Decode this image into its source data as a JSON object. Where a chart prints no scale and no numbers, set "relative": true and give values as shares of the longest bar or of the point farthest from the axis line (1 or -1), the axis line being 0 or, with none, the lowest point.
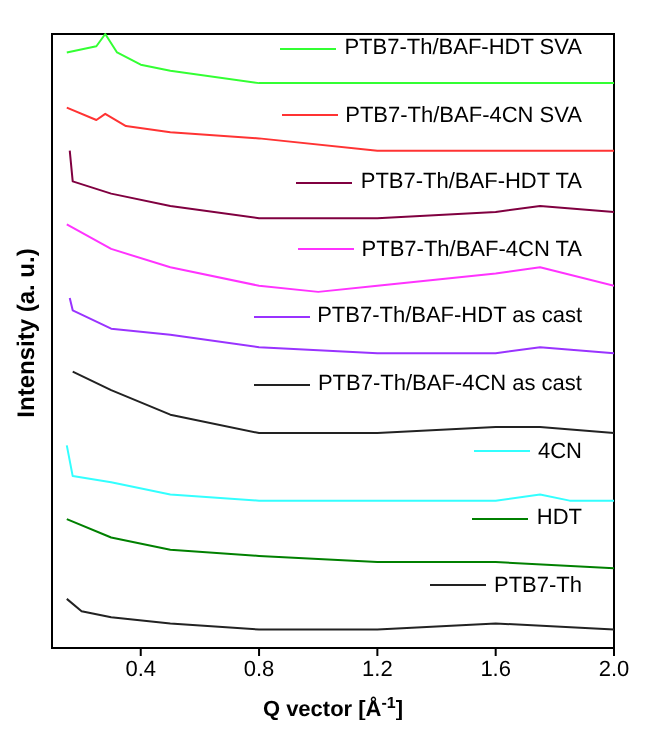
{
  "chart_data": {
    "type": "line",
    "relative": true,
    "xlabel": "Q vector [Å$^{-1}$]",
    "ylabel": "Intensity (a. u.)",
    "xlim": [
      0.1,
      2.0
    ],
    "xticks": [
      0.4,
      0.8,
      1.2,
      1.6,
      {
        "value": 2.0,
        "label": "2.0"
      }
    ],
    "legend": "top right",
    "marker": "none",
    "line_style": "solid",
    "series": [
      {
        "name": "PTB7-Th/BAF-HDT SVA",
        "color": "#33ff33",
        "x": [
          0.15,
          0.25,
          0.28,
          0.32,
          0.4,
          0.5,
          0.8,
          1.2,
          1.6,
          2.0
        ],
        "values": [
          0.97,
          0.98,
          1,
          0.97,
          0.95,
          0.94,
          0.92,
          0.92,
          0.92,
          0.92
        ]
      },
      {
        "name": "PTB7-Th/BAF-4CN SVA",
        "color": "#ff3333",
        "x": [
          0.15,
          0.25,
          0.28,
          0.35,
          0.5,
          0.8,
          1.2,
          1.6,
          2.0
        ],
        "values": [
          0.88,
          0.86,
          0.87,
          0.85,
          0.84,
          0.83,
          0.81,
          0.81,
          0.81
        ]
      },
      {
        "name": "PTB7-Th/BAF-HDT TA",
        "color": "#800040",
        "x": [
          0.16,
          0.17,
          0.3,
          0.5,
          0.8,
          1.2,
          1.6,
          1.75,
          2.0
        ],
        "values": [
          0.81,
          0.76,
          0.74,
          0.72,
          0.7,
          0.7,
          0.71,
          0.72,
          0.71
        ]
      },
      {
        "name": "PTB7-Th/BAF-4CN TA",
        "color": "#ff33ff",
        "x": [
          0.15,
          0.3,
          0.5,
          0.8,
          1.0,
          1.2,
          1.6,
          1.75,
          2.0
        ],
        "values": [
          0.69,
          0.65,
          0.62,
          0.59,
          0.58,
          0.59,
          0.61,
          0.62,
          0.59
        ]
      },
      {
        "name": "PTB7-Th/BAF-HDT as cast",
        "color": "#9933ff",
        "x": [
          0.16,
          0.17,
          0.3,
          0.5,
          0.8,
          1.2,
          1.6,
          1.75,
          2.0
        ],
        "values": [
          0.57,
          0.55,
          0.52,
          0.51,
          0.49,
          0.48,
          0.48,
          0.49,
          0.48
        ]
      },
      {
        "name": "PTB7-Th/BAF-4CN as cast",
        "color": "#222222",
        "x": [
          0.17,
          0.3,
          0.5,
          0.8,
          1.0,
          1.2,
          1.6,
          1.75,
          2.0
        ],
        "values": [
          0.45,
          0.42,
          0.38,
          0.35,
          0.35,
          0.35,
          0.36,
          0.36,
          0.35
        ]
      },
      {
        "name": "4CN",
        "color": "#33ffff",
        "x": [
          0.15,
          0.17,
          0.3,
          0.5,
          0.8,
          1.2,
          1.6,
          1.75,
          1.85,
          2.0
        ],
        "values": [
          0.33,
          0.28,
          0.27,
          0.25,
          0.24,
          0.24,
          0.24,
          0.25,
          0.24,
          0.24
        ]
      },
      {
        "name": "HDT",
        "color": "#008000",
        "x": [
          0.15,
          0.3,
          0.5,
          0.8,
          1.2,
          1.6,
          2.0
        ],
        "values": [
          0.21,
          0.18,
          0.16,
          0.15,
          0.14,
          0.14,
          0.13
        ]
      },
      {
        "name": "PTB7-Th",
        "color": "#222222",
        "x": [
          0.15,
          0.2,
          0.3,
          0.5,
          0.8,
          1.0,
          1.2,
          1.6,
          2.0
        ],
        "values": [
          0.08,
          0.06,
          0.05,
          0.04,
          0.03,
          0.03,
          0.03,
          0.04,
          0.03
        ]
      }
    ]
  }
}
